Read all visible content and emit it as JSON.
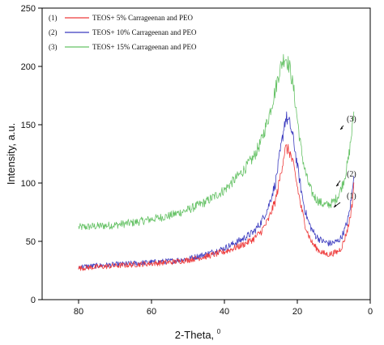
{
  "chart_data": {
    "type": "line",
    "title": "",
    "xlabel": "2-Theta, ",
    "xlabel_sup": "0",
    "ylabel": "Intensity, a.u.",
    "xlim": [
      90,
      0
    ],
    "ylim": [
      0,
      250
    ],
    "x_reversed": true,
    "xticks": [
      "80",
      "60",
      "40",
      "20",
      "0"
    ],
    "yticks": [
      "0",
      "50",
      "100",
      "150",
      "200",
      "250"
    ],
    "grid": false,
    "legend_position": "top-left",
    "series": [
      {
        "name": "TEOS+ 5% Carrageenan and PEO",
        "legend_tag": "(1)",
        "annotation": "(1)",
        "color": "#ee3b3b",
        "x": [
          80,
          75,
          70,
          65,
          60,
          55,
          50,
          45,
          40,
          35,
          32,
          30,
          28,
          26,
          25,
          24,
          23.5,
          23,
          22,
          21,
          20,
          19,
          18,
          17,
          16,
          15,
          14,
          13,
          12,
          11,
          10,
          9,
          8,
          7,
          6,
          5,
          4.5
        ],
        "values": [
          27,
          28,
          29,
          30,
          31,
          32,
          34,
          37,
          41,
          47,
          52,
          58,
          68,
          85,
          100,
          118,
          127,
          130,
          126,
          114,
          97,
          80,
          66,
          56,
          49,
          45,
          42,
          40,
          39,
          39,
          40,
          41,
          44,
          52,
          63,
          80,
          100
        ]
      },
      {
        "name": "TEOS+ 10% Carrageenan and PEO",
        "legend_tag": "(2)",
        "annotation": "(2)",
        "color": "#3b3bbf",
        "x": [
          80,
          75,
          70,
          65,
          60,
          55,
          50,
          45,
          40,
          35,
          32,
          30,
          28,
          26,
          25,
          24,
          23.5,
          23,
          22,
          21,
          20,
          19,
          18,
          17,
          16,
          15,
          14,
          13,
          12,
          11,
          10,
          9,
          8,
          7,
          6,
          5,
          4.5
        ],
        "values": [
          28,
          29,
          30,
          31,
          32,
          33,
          35,
          39,
          44,
          52,
          58,
          66,
          79,
          100,
          120,
          140,
          152,
          156,
          150,
          136,
          115,
          95,
          78,
          67,
          60,
          55,
          52,
          50,
          49,
          48,
          49,
          50,
          53,
          60,
          70,
          90,
          110
        ]
      },
      {
        "name": "TEOS+ 15% Carrageenan and PEO",
        "legend_tag": "(3)",
        "annotation": "(3)",
        "color": "#66c266",
        "x": [
          80,
          75,
          70,
          65,
          60,
          55,
          50,
          45,
          40,
          35,
          32,
          30,
          28,
          26,
          25,
          24,
          23.5,
          23,
          22,
          21,
          20,
          19,
          18,
          17,
          16,
          15,
          14,
          13,
          12,
          11,
          10,
          9,
          8,
          7,
          6,
          5,
          4.5
        ],
        "values": [
          62,
          63,
          64,
          66,
          69,
          72,
          77,
          84,
          94,
          110,
          122,
          135,
          155,
          180,
          195,
          205,
          208,
          207,
          198,
          180,
          155,
          130,
          112,
          100,
          92,
          87,
          84,
          82,
          81,
          82,
          84,
          88,
          95,
          105,
          120,
          145,
          160
        ]
      }
    ]
  }
}
